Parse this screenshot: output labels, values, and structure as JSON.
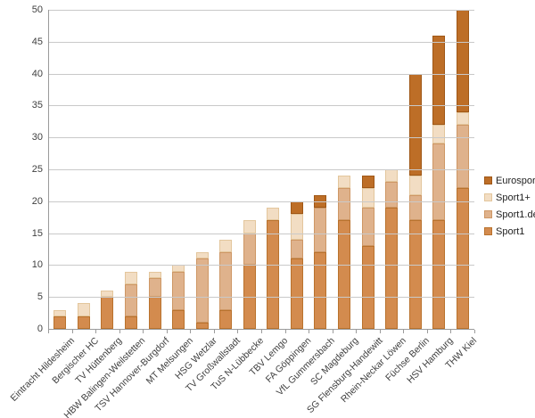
{
  "chart_data": {
    "type": "bar",
    "stacked": true,
    "title": "",
    "xlabel": "",
    "ylabel": "",
    "ylim": [
      0,
      50
    ],
    "ytick_step": 5,
    "grid": true,
    "legend_position": "right",
    "legend_order": [
      "Eurosport",
      "Sport1+",
      "Sport1.de",
      "Sport1"
    ],
    "categories": [
      "Eintracht Hildesheim",
      "Bergischer HC",
      "TV Hüttenberg",
      "HBW Balingen-Weilstetten",
      "TSV Hannover-Burgdorf",
      "MT Melsungen",
      "HSG Wetzlar",
      "TV Großwallstadt",
      "TuS N-Lübbecke",
      "TBV Lemgo",
      "FA Göppingen",
      "VfL Gummersbach",
      "SC Magdeburg",
      "SG Flensburg-Handewitt",
      "Rhein-Neckar Löwen",
      "Füchse Berlin",
      "HSV Hamburg",
      "THW Kiel"
    ],
    "series": [
      {
        "name": "Sport1",
        "color": "#d38b4e",
        "border": "#b9722d",
        "values": [
          2,
          2,
          5,
          2,
          5,
          3,
          1,
          3,
          10,
          17,
          11,
          12,
          17,
          13,
          19,
          17,
          17,
          22
        ]
      },
      {
        "name": "Sport1.de",
        "color": "#dfb28c",
        "border": "#ce9765",
        "values": [
          0,
          0,
          0,
          5,
          3,
          6,
          10,
          9,
          5,
          0,
          3,
          7,
          5,
          6,
          4,
          4,
          12,
          10
        ]
      },
      {
        "name": "Sport1+",
        "color": "#f2ddc3",
        "border": "#e3c69c",
        "values": [
          1,
          2,
          1,
          2,
          1,
          1,
          1,
          2,
          2,
          2,
          4,
          0,
          2,
          3,
          2,
          3,
          3,
          2
        ]
      },
      {
        "name": "Eurosport",
        "color": "#bd6e27",
        "border": "#9f5716",
        "values": [
          0,
          0,
          0,
          0,
          0,
          0,
          0,
          0,
          0,
          0,
          2,
          2,
          0,
          2,
          0,
          16,
          14,
          16
        ]
      }
    ],
    "totals": [
      3,
      4,
      6,
      9,
      9,
      10,
      12,
      14,
      17,
      19,
      20,
      21,
      24,
      24,
      25,
      40,
      46,
      50
    ],
    "ytick_labels": [
      "0",
      "5",
      "10",
      "15",
      "20",
      "25",
      "30",
      "35",
      "40",
      "45",
      "50"
    ]
  }
}
